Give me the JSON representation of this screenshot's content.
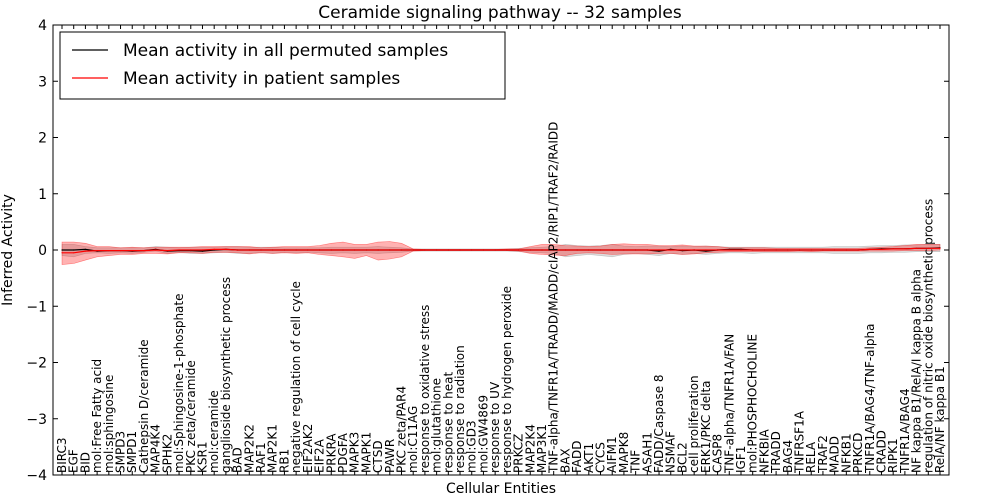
{
  "chart_data": {
    "type": "line",
    "title": "Ceramide signaling pathway -- 32 samples",
    "xlabel": "Cellular Entities",
    "ylabel": "Inferred Activity",
    "ylim": [
      -4,
      4
    ],
    "yticks": [
      -4,
      -3,
      -2,
      -1,
      0,
      1,
      2,
      3,
      4
    ],
    "ytick_labels": [
      "−4",
      "−3",
      "−2",
      "−1",
      "0",
      "1",
      "2",
      "3",
      "4"
    ],
    "grid": false,
    "legend_position": "top-left",
    "categories": [
      "BIRC3",
      "EGF",
      "BID",
      "mol:Free Fatty acid",
      "mol:sphingosine",
      "SMPD3",
      "SMPD1",
      "Cathepsin D/ceramide",
      "MAP4K4",
      "SPHK2",
      "mol:Sphingosine-1-phosphate",
      "PKC zeta/ceramide",
      "KSR1",
      "mol:ceramide",
      "ganglioside biosynthetic process",
      "BAD",
      "MAP2K2",
      "RAF1",
      "MAP2K1",
      "RB1",
      "negative regulation of cell cycle",
      "EIF2AK2",
      "EIF2A",
      "PRKRA",
      "PDGFA",
      "MAPK3",
      "MAPK1",
      "CTSD",
      "PAWR",
      "PKC zeta/PAR4",
      "mol:C11AG",
      "response to oxidative stress",
      "mol:glutathione",
      "response to heat",
      "response to radiation",
      "mol:GD3",
      "mol:GW4869",
      "response to UV",
      "response to hydrogen peroxide",
      "PRKCZ",
      "MAP2K4",
      "MAP3K1",
      "TNF-alpha/TNFR1A/TRADD/MADD/cIAP2/RIP1/TRAF2/RAIDD",
      "BAX",
      "FADD",
      "AKT1",
      "CYCS",
      "AIFM1",
      "MAPK8",
      "TNF",
      "ASAH1",
      "FADD/Caspase 8",
      "NSMAF",
      "BCL2",
      "cell proliferation",
      "ERK1/PKC delta",
      "CASP8",
      "TNF-alpha/TNFR1A/FAN",
      "IGF1",
      "mol:PHOSPHOCHOLINE",
      "NFKBIA",
      "TRADD",
      "BAG4",
      "TNFRSF1A",
      "RELA",
      "TRAF2",
      "MADD",
      "NFKB1",
      "PRKCD",
      "TNFR1A/BAG4/TNF-alpha",
      "CRADD",
      "RIPK1",
      "TNFR1A/BAG4",
      "NF kappa B1/RelA/I kappa B alpha",
      "regulation of nitric oxide biosynthetic process",
      "RelA/NF kappa B1"
    ],
    "series": [
      {
        "name": "Mean activity in all permuted samples",
        "color": "#000000",
        "values": [
          0,
          0,
          0.01,
          -0.02,
          -0.01,
          -0.01,
          -0.02,
          -0.01,
          0.01,
          -0.02,
          -0.01,
          -0.01,
          -0.02,
          0,
          0.01,
          0,
          0,
          0,
          0,
          0,
          0,
          0,
          0,
          0,
          0,
          0,
          0,
          0,
          0,
          0,
          0,
          0,
          0,
          0,
          0,
          0,
          0,
          0,
          0,
          0,
          0,
          0,
          0,
          0,
          0,
          0,
          0,
          0,
          0,
          0,
          0,
          -0.02,
          0.01,
          -0.01,
          0,
          -0.02,
          0,
          0.01,
          0.01,
          0,
          0,
          0,
          0,
          0,
          0,
          0,
          0,
          0,
          0,
          0.01,
          0.02,
          0.02,
          0.02,
          0.03,
          0.03,
          0.04
        ],
        "band_lower": [
          -0.1,
          -0.12,
          -0.06,
          -0.05,
          -0.06,
          -0.05,
          -0.06,
          -0.04,
          -0.02,
          -0.06,
          -0.04,
          -0.06,
          -0.06,
          -0.05,
          -0.04,
          -0.06,
          -0.06,
          -0.04,
          -0.06,
          -0.04,
          -0.05,
          -0.04,
          -0.05,
          -0.06,
          -0.05,
          -0.06,
          -0.05,
          -0.06,
          -0.05,
          -0.04,
          -0.02,
          -0.02,
          -0.02,
          -0.02,
          -0.02,
          -0.02,
          -0.02,
          -0.02,
          -0.02,
          -0.03,
          -0.04,
          -0.05,
          -0.06,
          -0.12,
          -0.1,
          -0.08,
          -0.1,
          -0.12,
          -0.08,
          -0.06,
          -0.08,
          -0.1,
          -0.06,
          -0.08,
          -0.06,
          -0.08,
          -0.06,
          -0.05,
          -0.05,
          -0.06,
          -0.05,
          -0.05,
          -0.05,
          -0.05,
          -0.05,
          -0.05,
          -0.06,
          -0.06,
          -0.06,
          -0.05,
          -0.05,
          -0.04,
          -0.04,
          -0.03,
          -0.03,
          -0.03
        ],
        "band_upper": [
          0.1,
          0.1,
          0.06,
          0.04,
          0.04,
          0.04,
          0.04,
          0.04,
          0.06,
          0.05,
          0.04,
          0.05,
          0.05,
          0.05,
          0.06,
          0.06,
          0.05,
          0.05,
          0.05,
          0.04,
          0.04,
          0.04,
          0.04,
          0.05,
          0.05,
          0.05,
          0.05,
          0.06,
          0.05,
          0.04,
          0.02,
          0.02,
          0.02,
          0.02,
          0.02,
          0.02,
          0.02,
          0.02,
          0.02,
          0.03,
          0.04,
          0.05,
          0.06,
          0.1,
          0.08,
          0.07,
          0.08,
          0.1,
          0.07,
          0.06,
          0.07,
          0.07,
          0.06,
          0.07,
          0.06,
          0.07,
          0.06,
          0.05,
          0.05,
          0.05,
          0.05,
          0.05,
          0.05,
          0.05,
          0.05,
          0.05,
          0.06,
          0.06,
          0.06,
          0.07,
          0.08,
          0.08,
          0.09,
          0.09,
          0.1,
          0.1
        ]
      },
      {
        "name": "Mean activity in patient samples",
        "color": "#ff0000",
        "values": [
          -0.05,
          -0.05,
          -0.02,
          -0.01,
          -0.01,
          -0.01,
          -0.01,
          -0.01,
          0,
          -0.01,
          0,
          0,
          0,
          0.01,
          0.01,
          0,
          0,
          0,
          0,
          0,
          0,
          0,
          0,
          0,
          0,
          0,
          0,
          0,
          0,
          0,
          0,
          0,
          0,
          0,
          0,
          0,
          0,
          0,
          0,
          0,
          0,
          0,
          0,
          0,
          0,
          0,
          0,
          0,
          0,
          0,
          0,
          0,
          0,
          0,
          0,
          0,
          0,
          0,
          0,
          0,
          0,
          0,
          0,
          0,
          0,
          0,
          0,
          0,
          0,
          0.01,
          0.01,
          0.02,
          0.02,
          0.03,
          0.03,
          0.03
        ],
        "band_lower": [
          -0.26,
          -0.24,
          -0.18,
          -0.12,
          -0.1,
          -0.08,
          -0.08,
          -0.06,
          -0.06,
          -0.07,
          -0.05,
          -0.05,
          -0.06,
          -0.04,
          -0.04,
          -0.05,
          -0.07,
          -0.05,
          -0.06,
          -0.05,
          -0.06,
          -0.05,
          -0.08,
          -0.1,
          -0.12,
          -0.15,
          -0.1,
          -0.18,
          -0.16,
          -0.12,
          -0.02,
          -0.01,
          -0.01,
          -0.01,
          -0.01,
          -0.01,
          -0.01,
          -0.01,
          -0.01,
          -0.02,
          -0.06,
          -0.08,
          -0.09,
          -0.1,
          -0.06,
          -0.05,
          -0.06,
          -0.08,
          -0.07,
          -0.07,
          -0.07,
          -0.06,
          -0.06,
          -0.08,
          -0.07,
          -0.05,
          -0.04,
          -0.03,
          -0.03,
          -0.03,
          -0.03,
          -0.03,
          -0.03,
          -0.02,
          -0.03,
          -0.02,
          -0.02,
          -0.02,
          -0.02,
          -0.02,
          -0.02,
          -0.02,
          -0.01,
          -0.01,
          -0.01,
          0
        ],
        "band_upper": [
          0.14,
          0.14,
          0.12,
          0.06,
          0.06,
          0.04,
          0.05,
          0.04,
          0.05,
          0.05,
          0.05,
          0.05,
          0.06,
          0.06,
          0.06,
          0.06,
          0.06,
          0.04,
          0.05,
          0.06,
          0.06,
          0.06,
          0.08,
          0.12,
          0.14,
          0.1,
          0.1,
          0.14,
          0.15,
          0.12,
          0.02,
          0.01,
          0.01,
          0.01,
          0.01,
          0.01,
          0.01,
          0.01,
          0.02,
          0.02,
          0.06,
          0.1,
          0.1,
          0.08,
          0.07,
          0.06,
          0.07,
          0.1,
          0.11,
          0.1,
          0.1,
          0.08,
          0.08,
          0.09,
          0.07,
          0.07,
          0.06,
          0.04,
          0.04,
          0.04,
          0.04,
          0.03,
          0.03,
          0.03,
          0.03,
          0.03,
          0.03,
          0.03,
          0.03,
          0.04,
          0.05,
          0.06,
          0.08,
          0.1,
          0.1,
          0.1
        ]
      }
    ]
  }
}
